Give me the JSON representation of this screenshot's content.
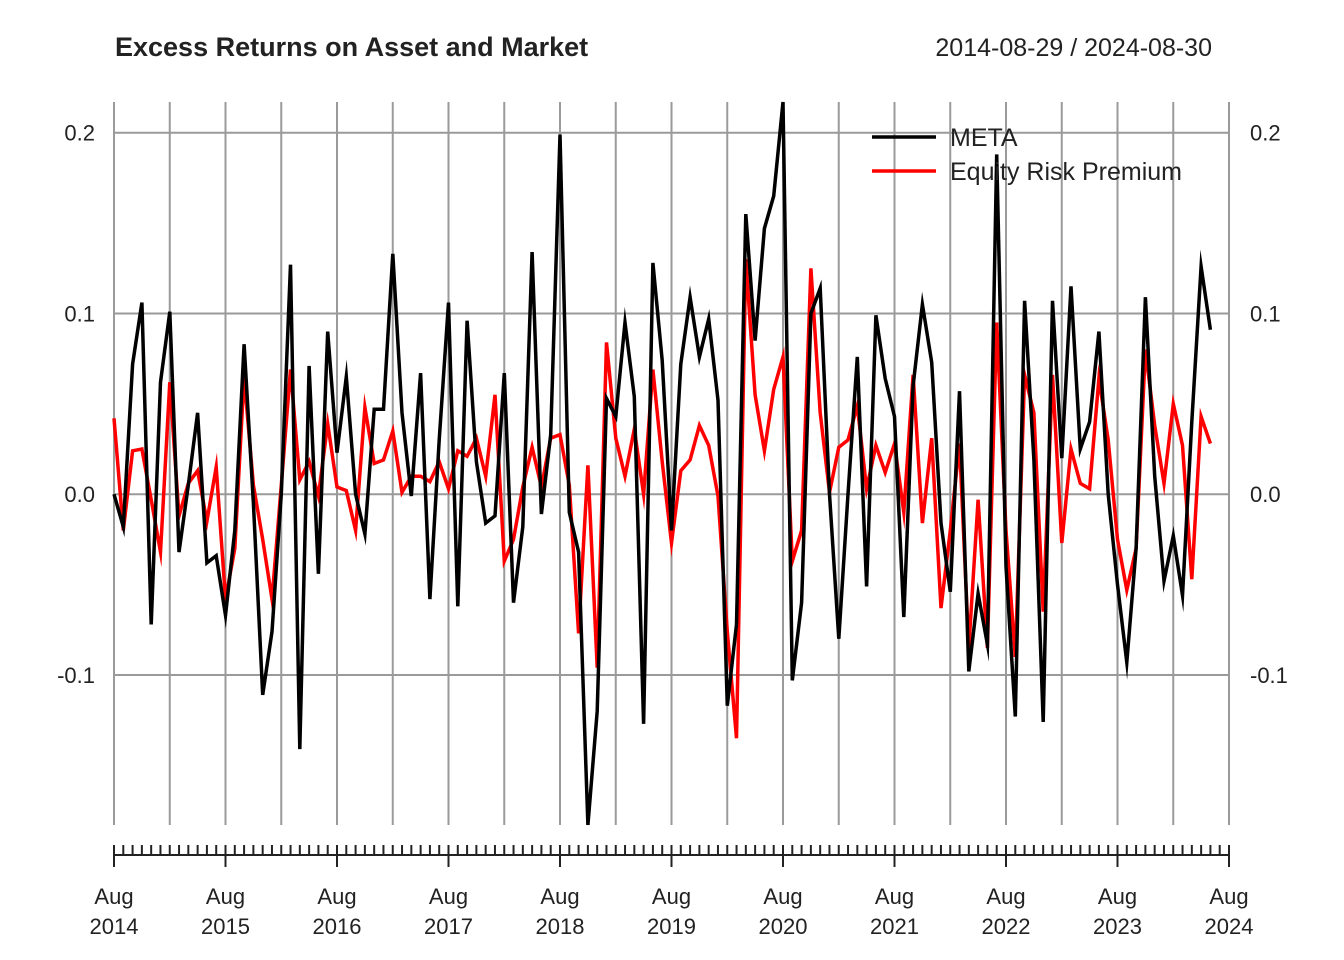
{
  "chart_data": {
    "type": "line",
    "title": "Excess Returns on Asset and Market",
    "date_range": "2014-08-29 / 2024-08-30",
    "ylim": [
      -0.183,
      0.217
    ],
    "y_ticks": [
      -0.1,
      0.0,
      0.1,
      0.2
    ],
    "y_tick_labels": [
      "-0.1",
      "0.0",
      "0.1",
      "0.2"
    ],
    "x_ticks": [
      {
        "month": "Aug",
        "year": "2014",
        "index": 0
      },
      {
        "month": "Aug",
        "year": "2015",
        "index": 12
      },
      {
        "month": "Aug",
        "year": "2016",
        "index": 24
      },
      {
        "month": "Aug",
        "year": "2017",
        "index": 36
      },
      {
        "month": "Aug",
        "year": "2018",
        "index": 48
      },
      {
        "month": "Aug",
        "year": "2019",
        "index": 60
      },
      {
        "month": "Aug",
        "year": "2020",
        "index": 72
      },
      {
        "month": "Aug",
        "year": "2021",
        "index": 84
      },
      {
        "month": "Aug",
        "year": "2022",
        "index": 96
      },
      {
        "month": "Aug",
        "year": "2023",
        "index": 108
      },
      {
        "month": "Aug",
        "year": "2024",
        "index": 120
      }
    ],
    "x_count": 121,
    "legend_position": "top-right",
    "grid": true,
    "series": [
      {
        "name": "META",
        "color": "#000000",
        "values": [
          0.0,
          -0.018,
          0.072,
          0.106,
          -0.072,
          0.062,
          0.101,
          -0.032,
          0.005,
          0.045,
          -0.038,
          -0.034,
          -0.067,
          -0.02,
          0.083,
          -0.005,
          -0.111,
          -0.076,
          0.0,
          0.127,
          -0.141,
          0.071,
          -0.044,
          0.09,
          0.023,
          0.065,
          0.0,
          -0.022,
          0.047,
          0.047,
          0.133,
          0.045,
          -0.001,
          0.067,
          -0.058,
          0.03,
          0.106,
          -0.062,
          0.096,
          0.018,
          -0.016,
          -0.012,
          0.067,
          -0.06,
          -0.018,
          0.134,
          -0.011,
          0.033,
          0.199,
          -0.01,
          -0.032,
          -0.183,
          -0.12,
          0.053,
          0.043,
          0.095,
          0.054,
          -0.127,
          0.128,
          0.074,
          -0.02,
          0.072,
          0.109,
          0.076,
          0.097,
          0.052,
          -0.117,
          -0.072,
          0.155,
          0.085,
          0.147,
          0.165,
          0.217,
          -0.103,
          -0.06,
          0.1,
          0.114,
          0.0,
          -0.08,
          0.0,
          0.076,
          -0.051,
          0.099,
          0.064,
          0.043,
          -0.068,
          0.06,
          0.105,
          0.073,
          -0.016,
          -0.054,
          0.057,
          -0.098,
          -0.055,
          -0.083,
          0.188,
          -0.04,
          -0.123,
          0.107,
          0.019,
          -0.126,
          0.107,
          0.02,
          0.115,
          0.025,
          0.04,
          0.09,
          0.0,
          -0.05,
          -0.093,
          -0.03,
          0.109,
          0.01,
          -0.048,
          -0.023,
          -0.056,
          0.04,
          0.126,
          0.091
        ]
      },
      {
        "name": "Equity Risk Premium",
        "color": "#ff0000",
        "values": [
          0.042,
          -0.02,
          0.024,
          0.025,
          -0.003,
          -0.032,
          0.062,
          -0.012,
          0.006,
          0.013,
          -0.015,
          0.015,
          -0.058,
          -0.03,
          0.065,
          0.005,
          -0.025,
          -0.058,
          0.005,
          0.069,
          0.008,
          0.018,
          -0.001,
          0.039,
          0.004,
          0.002,
          -0.02,
          0.048,
          0.017,
          0.019,
          0.035,
          0.001,
          0.01,
          0.01,
          0.007,
          0.018,
          0.003,
          0.024,
          0.021,
          0.031,
          0.01,
          0.055,
          -0.037,
          -0.025,
          0.004,
          0.026,
          0.004,
          0.031,
          0.033,
          0.005,
          -0.077,
          0.016,
          -0.096,
          0.084,
          0.031,
          0.01,
          0.036,
          0.0,
          0.069,
          0.018,
          -0.027,
          0.013,
          0.019,
          0.038,
          0.027,
          -0.001,
          -0.076,
          -0.135,
          0.13,
          0.055,
          0.024,
          0.058,
          0.076,
          -0.037,
          -0.02,
          0.125,
          0.045,
          0.001,
          0.026,
          0.03,
          0.049,
          0.003,
          0.027,
          0.012,
          0.028,
          -0.01,
          0.066,
          -0.016,
          0.031,
          -0.063,
          -0.02,
          0.028,
          -0.085,
          -0.003,
          -0.085,
          0.095,
          -0.02,
          -0.09,
          0.066,
          0.045,
          -0.065,
          0.066,
          -0.027,
          0.025,
          0.006,
          0.003,
          0.064,
          0.03,
          -0.025,
          -0.053,
          -0.03,
          0.08,
          0.038,
          0.006,
          0.05,
          0.027,
          -0.047,
          0.043,
          0.028
        ]
      }
    ]
  }
}
